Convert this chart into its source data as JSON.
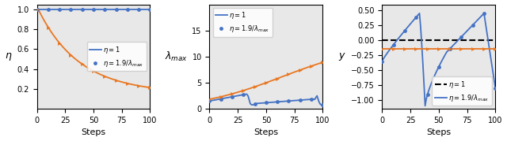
{
  "blue_color": "#4472c4",
  "orange_color": "#e87722",
  "xlabel": "Steps",
  "panel1_ylabel": "$\\eta$",
  "panel2_ylabel": "$\\lambda_{max}$",
  "panel3_ylabel": "$y$",
  "legend_eta1": "$\\eta = 1$",
  "legend_eta2": "$\\eta = 1.9/\\lambda_{max}$",
  "panel1_ylim": [
    0.0,
    1.05
  ],
  "panel2_ylim": [
    0.0,
    20.0
  ],
  "panel3_ylim": [
    -1.15,
    0.6
  ],
  "panel1_yticks": [
    0.2,
    0.4,
    0.6,
    0.8,
    1.0
  ],
  "panel2_yticks": [
    0,
    5,
    10,
    15
  ],
  "panel3_yticks": [
    -1.0,
    -0.75,
    -0.5,
    -0.25,
    0.0,
    0.25,
    0.5
  ],
  "xticks": [
    0,
    25,
    50,
    75,
    100
  ],
  "background_color": "#e8e8e8",
  "marker_every": 10
}
